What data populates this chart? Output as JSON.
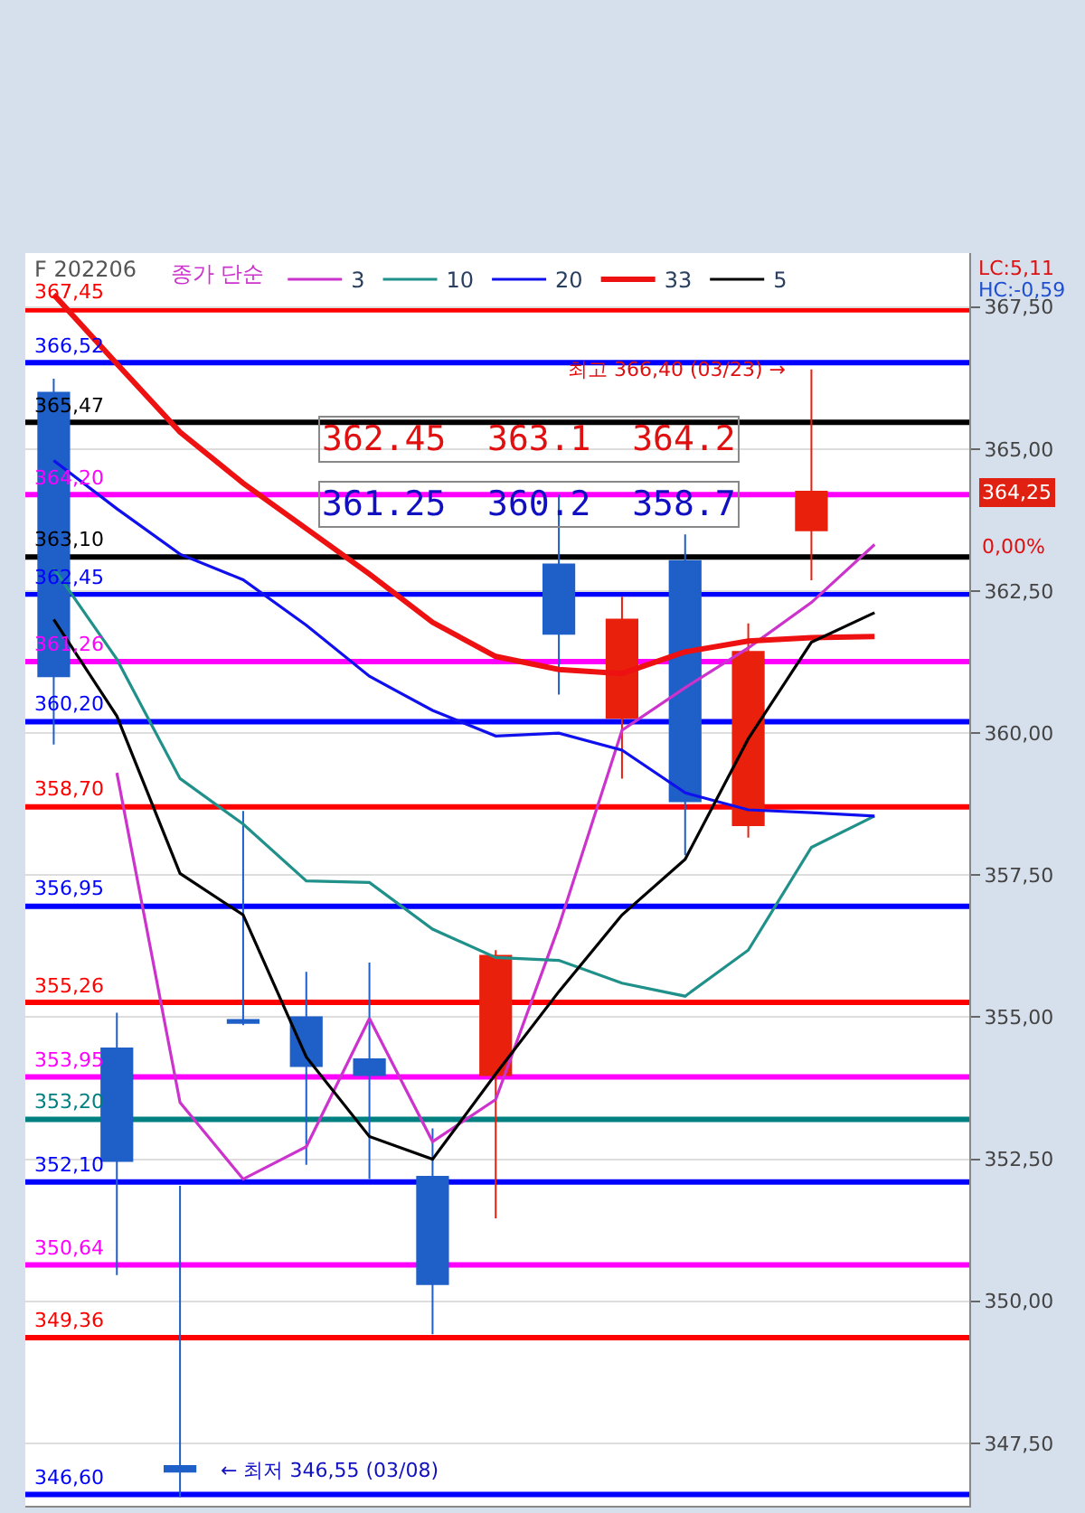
{
  "chart_data": {
    "type": "candlestick",
    "title": "F 202206",
    "legend_title": "종가 단순",
    "legend": "top left",
    "grid": "y",
    "tick_labels": "y",
    "categories": [
      null,
      null,
      null,
      null,
      null,
      null,
      null,
      null,
      null,
      null,
      null,
      null,
      null,
      null
    ],
    "ohlc": [
      [
        365.99,
        366.24,
        359.8,
        361.0
      ],
      [
        354.45,
        355.08,
        350.46,
        352.47
      ],
      [
        347.1,
        352.03,
        346.55,
        347.0
      ],
      [
        354.95,
        358.63,
        354.86,
        354.9
      ],
      [
        355.0,
        355.8,
        352.4,
        354.14
      ],
      [
        354.26,
        355.96,
        352.15,
        353.98
      ],
      [
        352.19,
        353.04,
        349.42,
        350.3
      ],
      [
        353.98,
        356.18,
        351.46,
        356.08
      ],
      [
        362.97,
        364.2,
        360.68,
        361.75
      ],
      [
        360.27,
        362.4,
        359.2,
        362.0
      ],
      [
        363.03,
        363.5,
        357.85,
        358.8
      ],
      [
        358.38,
        361.93,
        358.16,
        361.43
      ],
      [
        363.57,
        366.4,
        362.69,
        364.25
      ],
      null
    ],
    "colors": [
      "#1f5fc8",
      "#1f5fc8",
      "#1f5fc8",
      "#1f5fc8",
      "#1f5fc8",
      "#1f5fc8",
      "#1f5fc8",
      "#e8200c",
      "#1f5fc8",
      "#e8200c",
      "#1f5fc8",
      "#e8200c",
      "#e8200c",
      null
    ],
    "series": [
      {
        "name": "3",
        "type": "line",
        "color": "#cc33cc",
        "values": [
          null,
          359.3,
          353.5,
          352.15,
          352.72,
          354.98,
          352.81,
          353.55,
          356.6,
          360.05,
          360.8,
          361.5,
          362.3,
          363.32
        ]
      },
      {
        "name": "10",
        "type": "line",
        "color": "#20908a",
        "values": [
          362.9,
          361.3,
          359.2,
          358.4,
          357.4,
          357.37,
          356.55,
          356.05,
          356.0,
          355.6,
          355.37,
          356.18,
          357.99,
          358.54
        ]
      },
      {
        "name": "20",
        "type": "line",
        "color": "#1010ee",
        "values": [
          364.8,
          363.95,
          363.15,
          362.7,
          361.9,
          361.0,
          360.4,
          359.95,
          360.0,
          359.7,
          358.95,
          358.65,
          358.6,
          358.54
        ]
      },
      {
        "name": "33",
        "type": "line",
        "color": "#ee1111",
        "values": [
          367.72,
          366.5,
          365.3,
          364.4,
          363.6,
          362.8,
          361.95,
          361.35,
          361.12,
          361.05,
          361.43,
          361.62,
          361.68,
          361.7
        ]
      },
      {
        "name": "5",
        "type": "line",
        "color": "#000000",
        "values": [
          362.0,
          360.3,
          357.53,
          356.8,
          354.3,
          352.9,
          352.5,
          354.0,
          355.45,
          356.8,
          357.78,
          359.9,
          361.6,
          362.12
        ]
      }
    ],
    "ylim": [
      346.4,
      368.45
    ],
    "yticks": [
      {
        "value": 347.5,
        "label": "347,50"
      },
      {
        "value": 350,
        "label": "350,00"
      },
      {
        "value": 352.5,
        "label": "352,50"
      },
      {
        "value": 355,
        "label": "355,00"
      },
      {
        "value": 357.5,
        "label": "357,50"
      },
      {
        "value": 360,
        "label": "360,00"
      },
      {
        "value": 362.5,
        "label": "362,50"
      },
      {
        "value": 365,
        "label": "365,00"
      },
      {
        "value": 367.5,
        "label": "367,50"
      }
    ],
    "ref_lines": [
      {
        "axis": "y",
        "value": 367.45,
        "label": "367,45",
        "color": "#ff0000"
      },
      {
        "axis": "y",
        "value": 366.52,
        "label": "366,52",
        "color": "#0000ff"
      },
      {
        "axis": "y",
        "value": 365.47,
        "label": "365,47",
        "color": "#000000"
      },
      {
        "axis": "y",
        "value": 364.2,
        "label": "364,20",
        "color": "#ff00ff"
      },
      {
        "axis": "y",
        "value": 363.1,
        "label": "363,10",
        "color": "#000000"
      },
      {
        "axis": "y",
        "value": 362.45,
        "label": "362,45",
        "color": "#0000ff"
      },
      {
        "axis": "y",
        "value": 361.26,
        "label": "361,26",
        "color": "#ff00ff"
      },
      {
        "axis": "y",
        "value": 360.2,
        "label": "360,20",
        "color": "#0000ff"
      },
      {
        "axis": "y",
        "value": 358.7,
        "label": "358,70",
        "color": "#ff0000"
      },
      {
        "axis": "y",
        "value": 356.95,
        "label": "356,95",
        "color": "#0000ff"
      },
      {
        "axis": "y",
        "value": 355.26,
        "label": "355,26",
        "color": "#ff0000"
      },
      {
        "axis": "y",
        "value": 353.95,
        "label": "353,95",
        "color": "#ff00ff"
      },
      {
        "axis": "y",
        "value": 353.2,
        "label": "353,20",
        "color": "#008080"
      },
      {
        "axis": "y",
        "value": 352.1,
        "label": "352,10",
        "color": "#0000ff"
      },
      {
        "axis": "y",
        "value": 350.64,
        "label": "350,64",
        "color": "#ff00ff"
      },
      {
        "axis": "y",
        "value": 349.36,
        "label": "349,36",
        "color": "#ff0000"
      },
      {
        "axis": "y",
        "value": 346.6,
        "label": "346,60",
        "color": "#0000ff"
      }
    ],
    "annotations": [
      "362.45  363.1  364.2",
      "361.25  360.2  358.7",
      {
        "text": "최고 366,40 (03/23) →",
        "y": 366.4
      },
      {
        "text": "← 최저 346,55 (03/08)",
        "y": 346.55
      },
      "LC:5,11",
      "HC:-0,59",
      "364,25",
      "0,00%"
    ]
  }
}
